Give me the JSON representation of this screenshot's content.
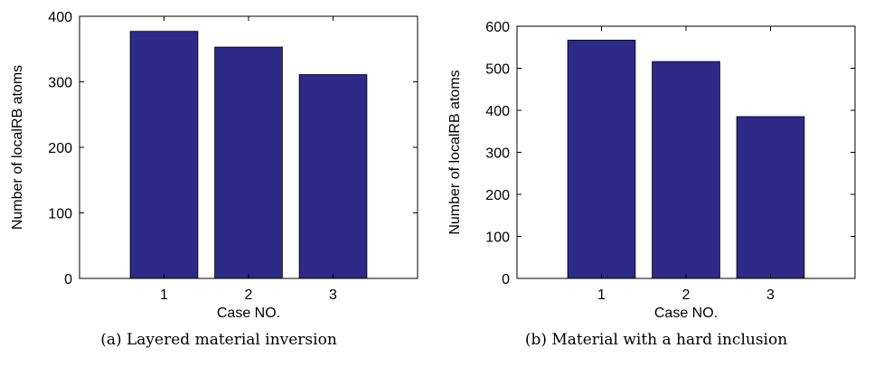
{
  "chart_data": [
    {
      "type": "bar",
      "categories": [
        "1",
        "2",
        "3"
      ],
      "values": [
        377,
        353,
        311
      ],
      "xlabel": "Case NO.",
      "ylabel": "Number of localRB atoms",
      "ylim": [
        0,
        400
      ],
      "yticks": [
        0,
        100,
        200,
        300,
        400
      ],
      "xlim": [
        0,
        4
      ],
      "bar_color": "#2e2a87",
      "grid": false,
      "caption": "(a) Layered material inversion"
    },
    {
      "type": "bar",
      "categories": [
        "1",
        "2",
        "3"
      ],
      "values": [
        567,
        516,
        385
      ],
      "xlabel": "Case NO.",
      "ylabel": "Number of localRB atoms",
      "ylim": [
        0,
        600
      ],
      "yticks": [
        0,
        100,
        200,
        300,
        400,
        500,
        600
      ],
      "xlim": [
        0,
        4
      ],
      "bar_color": "#2e2a87",
      "grid": false,
      "caption": "(b) Material with a hard inclusion"
    }
  ]
}
